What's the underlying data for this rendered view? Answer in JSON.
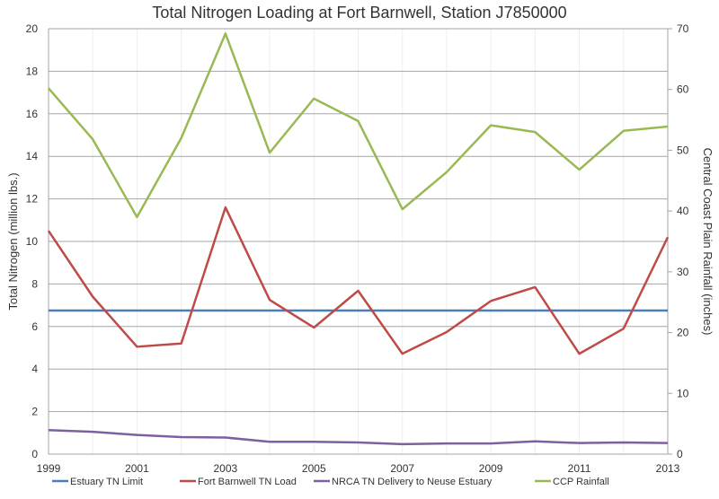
{
  "chart_data": {
    "type": "line",
    "title": "Total Nitrogen Loading at Fort Barnwell, Station J7850000",
    "xlabel": "",
    "ylabel": "Total Nitrogen (million lbs.)",
    "y2label": "Central Coast Plain Rainfall (inches)",
    "x": [
      1999,
      2000,
      2001,
      2002,
      2003,
      2004,
      2005,
      2006,
      2007,
      2008,
      2009,
      2010,
      2011,
      2012,
      2013
    ],
    "xticks": [
      "1999",
      "2001",
      "2003",
      "2005",
      "2007",
      "2009",
      "2011",
      "2013"
    ],
    "xlim": [
      1999,
      2013
    ],
    "ylim": [
      0,
      20
    ],
    "yticks": [
      "0",
      "2",
      "4",
      "6",
      "8",
      "10",
      "12",
      "14",
      "16",
      "18",
      "20"
    ],
    "y2lim": [
      0,
      70
    ],
    "y2ticks": [
      "0",
      "10",
      "20",
      "30",
      "40",
      "50",
      "60",
      "70"
    ],
    "grid": true,
    "legend_position": "bottom",
    "series": [
      {
        "name": "Estuary TN Limit",
        "axis": "left",
        "color": "#4a7ebb",
        "values": [
          6.75,
          6.75,
          6.75,
          6.75,
          6.75,
          6.75,
          6.75,
          6.75,
          6.75,
          6.75,
          6.75,
          6.75,
          6.75,
          6.75,
          6.75
        ]
      },
      {
        "name": "Fort Barnwell TN Load",
        "axis": "left",
        "color": "#be4b48",
        "values": [
          10.5,
          7.4,
          5.05,
          5.2,
          11.6,
          7.25,
          5.95,
          7.68,
          4.72,
          5.74,
          7.2,
          7.85,
          4.72,
          5.9,
          10.2
        ]
      },
      {
        "name": "NRCA TN Delivery to Neuse Estuary",
        "axis": "left",
        "color": "#7d60a0",
        "values": [
          1.13,
          1.05,
          0.9,
          0.8,
          0.78,
          0.58,
          0.58,
          0.55,
          0.47,
          0.5,
          0.5,
          0.6,
          0.52,
          0.55,
          0.52
        ]
      },
      {
        "name": "CCP Rainfall",
        "axis": "right",
        "color": "#98b954",
        "values": [
          60.2,
          51.8,
          39.0,
          52.0,
          69.2,
          49.6,
          58.5,
          54.8,
          40.3,
          46.4,
          54.1,
          53.0,
          46.8,
          53.2,
          53.9
        ]
      }
    ]
  }
}
